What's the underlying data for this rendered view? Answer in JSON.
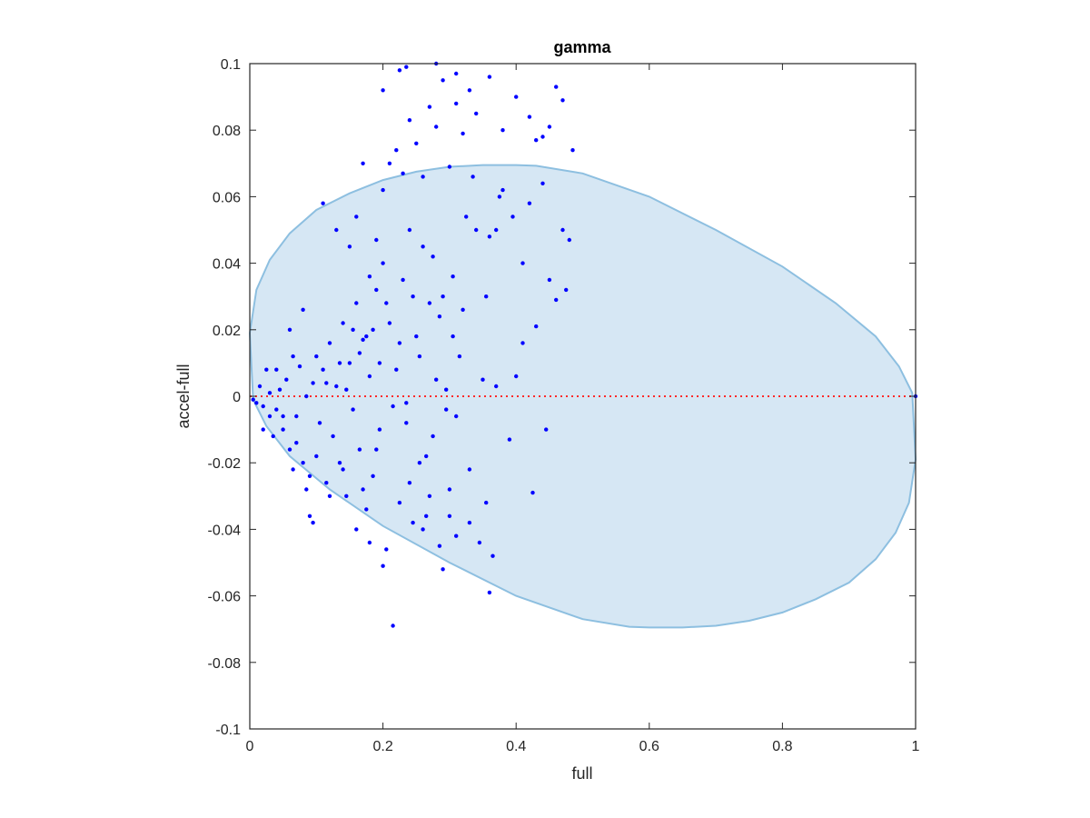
{
  "chart_data": {
    "type": "scatter",
    "title": "gamma",
    "xlabel": "full",
    "ylabel": "accel-full",
    "xlim": [
      0,
      1
    ],
    "ylim": [
      -0.1,
      0.1
    ],
    "xticks": [
      "0",
      "0.2",
      "0.4",
      "0.6",
      "0.8",
      "1"
    ],
    "xtick_values": [
      0,
      0.2,
      0.4,
      0.6,
      0.8,
      1
    ],
    "yticks": [
      "-0.1",
      "-0.08",
      "-0.06",
      "-0.04",
      "-0.02",
      "0",
      "0.02",
      "0.04",
      "0.06",
      "0.08",
      "0.1"
    ],
    "ytick_values": [
      -0.1,
      -0.08,
      -0.06,
      -0.04,
      -0.02,
      0,
      0.02,
      0.04,
      0.06,
      0.08,
      0.1
    ],
    "grid": false,
    "colors": {
      "points": "#0000ff",
      "ellipse_fill": "#d6e7f4",
      "ellipse_edge": "#8dbfe0",
      "zero_line": "#ff2a2a",
      "axes": "#262626"
    },
    "reference_line": {
      "y": 0,
      "style": "dotted"
    },
    "ellipse_polygon": [
      [
        0.0,
        0.019
      ],
      [
        0.01,
        0.032
      ],
      [
        0.03,
        0.041
      ],
      [
        0.06,
        0.049
      ],
      [
        0.1,
        0.056
      ],
      [
        0.15,
        0.061
      ],
      [
        0.2,
        0.065
      ],
      [
        0.25,
        0.0675
      ],
      [
        0.3,
        0.069
      ],
      [
        0.35,
        0.0695
      ],
      [
        0.4,
        0.0695
      ],
      [
        0.43,
        0.0693
      ],
      [
        0.5,
        0.067
      ],
      [
        0.6,
        0.06
      ],
      [
        0.7,
        0.05
      ],
      [
        0.8,
        0.039
      ],
      [
        0.88,
        0.028
      ],
      [
        0.94,
        0.018
      ],
      [
        0.975,
        0.009
      ],
      [
        0.995,
        0.001
      ],
      [
        1.0,
        -0.019
      ],
      [
        0.99,
        -0.032
      ],
      [
        0.97,
        -0.041
      ],
      [
        0.94,
        -0.049
      ],
      [
        0.9,
        -0.056
      ],
      [
        0.85,
        -0.061
      ],
      [
        0.8,
        -0.065
      ],
      [
        0.75,
        -0.0675
      ],
      [
        0.7,
        -0.069
      ],
      [
        0.65,
        -0.0695
      ],
      [
        0.6,
        -0.0695
      ],
      [
        0.57,
        -0.0693
      ],
      [
        0.5,
        -0.067
      ],
      [
        0.4,
        -0.06
      ],
      [
        0.3,
        -0.05
      ],
      [
        0.2,
        -0.039
      ],
      [
        0.12,
        -0.028
      ],
      [
        0.06,
        -0.018
      ],
      [
        0.025,
        -0.009
      ],
      [
        0.005,
        -0.001
      ]
    ],
    "series": [
      {
        "points": [
          [
            0.005,
            -0.001
          ],
          [
            0.01,
            -0.002
          ],
          [
            0.015,
            0.003
          ],
          [
            0.02,
            -0.003
          ],
          [
            0.025,
            0.008
          ],
          [
            0.03,
            0.001
          ],
          [
            0.02,
            -0.01
          ],
          [
            0.03,
            -0.006
          ],
          [
            0.035,
            -0.012
          ],
          [
            0.04,
            -0.004
          ],
          [
            0.045,
            0.002
          ],
          [
            0.05,
            -0.01
          ],
          [
            0.055,
            0.005
          ],
          [
            0.06,
            -0.016
          ],
          [
            0.065,
            0.012
          ],
          [
            0.07,
            -0.006
          ],
          [
            0.075,
            0.009
          ],
          [
            0.08,
            -0.02
          ],
          [
            0.085,
            0.0
          ],
          [
            0.09,
            -0.024
          ],
          [
            0.095,
            0.004
          ],
          [
            0.1,
            -0.018
          ],
          [
            0.105,
            -0.008
          ],
          [
            0.11,
            0.008
          ],
          [
            0.115,
            -0.026
          ],
          [
            0.12,
            0.016
          ],
          [
            0.125,
            -0.012
          ],
          [
            0.13,
            0.003
          ],
          [
            0.135,
            -0.02
          ],
          [
            0.14,
            0.022
          ],
          [
            0.145,
            -0.03
          ],
          [
            0.15,
            0.01
          ],
          [
            0.155,
            -0.004
          ],
          [
            0.16,
            0.028
          ],
          [
            0.165,
            -0.016
          ],
          [
            0.17,
            0.017
          ],
          [
            0.175,
            -0.034
          ],
          [
            0.18,
            0.006
          ],
          [
            0.185,
            -0.024
          ],
          [
            0.19,
            0.032
          ],
          [
            0.195,
            -0.01
          ],
          [
            0.2,
            0.04
          ],
          [
            0.205,
            -0.046
          ],
          [
            0.21,
            0.022
          ],
          [
            0.215,
            -0.069
          ],
          [
            0.22,
            0.008
          ],
          [
            0.225,
            -0.032
          ],
          [
            0.23,
            0.035
          ],
          [
            0.235,
            -0.002
          ],
          [
            0.24,
            0.05
          ],
          [
            0.245,
            -0.038
          ],
          [
            0.25,
            0.018
          ],
          [
            0.255,
            -0.02
          ],
          [
            0.26,
            0.045
          ],
          [
            0.265,
            -0.036
          ],
          [
            0.27,
            0.028
          ],
          [
            0.275,
            -0.012
          ],
          [
            0.28,
            0.005
          ],
          [
            0.285,
            -0.045
          ],
          [
            0.29,
            0.03
          ],
          [
            0.295,
            0.002
          ],
          [
            0.3,
            -0.028
          ],
          [
            0.305,
            0.018
          ],
          [
            0.31,
            -0.006
          ],
          [
            0.32,
            0.026
          ],
          [
            0.33,
            -0.038
          ],
          [
            0.34,
            0.05
          ],
          [
            0.35,
            0.005
          ],
          [
            0.355,
            -0.032
          ],
          [
            0.36,
            0.048
          ],
          [
            0.365,
            -0.048
          ],
          [
            0.37,
            0.003
          ],
          [
            0.38,
            0.062
          ],
          [
            0.39,
            -0.013
          ],
          [
            0.4,
            0.006
          ],
          [
            0.41,
            0.016
          ],
          [
            0.42,
            0.058
          ],
          [
            0.425,
            -0.029
          ],
          [
            0.43,
            0.021
          ],
          [
            0.44,
            0.064
          ],
          [
            0.445,
            -0.01
          ],
          [
            0.45,
            0.035
          ],
          [
            0.46,
            0.029
          ],
          [
            0.47,
            0.05
          ],
          [
            0.475,
            0.032
          ],
          [
            0.48,
            0.047
          ],
          [
            0.11,
            0.058
          ],
          [
            0.13,
            0.05
          ],
          [
            0.15,
            0.045
          ],
          [
            0.16,
            0.054
          ],
          [
            0.17,
            0.07
          ],
          [
            0.18,
            0.036
          ],
          [
            0.19,
            0.047
          ],
          [
            0.2,
            0.062
          ],
          [
            0.21,
            0.07
          ],
          [
            0.22,
            0.074
          ],
          [
            0.23,
            0.067
          ],
          [
            0.24,
            0.083
          ],
          [
            0.25,
            0.076
          ],
          [
            0.26,
            0.066
          ],
          [
            0.27,
            0.087
          ],
          [
            0.28,
            0.081
          ],
          [
            0.29,
            0.095
          ],
          [
            0.3,
            0.069
          ],
          [
            0.31,
            0.088
          ],
          [
            0.32,
            0.079
          ],
          [
            0.33,
            0.092
          ],
          [
            0.34,
            0.085
          ],
          [
            0.36,
            0.096
          ],
          [
            0.38,
            0.08
          ],
          [
            0.4,
            0.09
          ],
          [
            0.42,
            0.084
          ],
          [
            0.44,
            0.078
          ],
          [
            0.46,
            0.093
          ],
          [
            0.47,
            0.089
          ],
          [
            0.485,
            0.074
          ],
          [
            0.225,
            0.098
          ],
          [
            0.235,
            0.099
          ],
          [
            0.28,
            0.1
          ],
          [
            0.31,
            0.097
          ],
          [
            0.335,
            0.066
          ],
          [
            0.375,
            0.06
          ],
          [
            0.395,
            0.054
          ],
          [
            0.43,
            0.077
          ],
          [
            0.45,
            0.081
          ],
          [
            0.2,
            0.092
          ],
          [
            0.06,
            0.02
          ],
          [
            0.07,
            -0.014
          ],
          [
            0.08,
            0.026
          ],
          [
            0.09,
            -0.036
          ],
          [
            0.1,
            0.012
          ],
          [
            0.12,
            -0.03
          ],
          [
            0.14,
            -0.022
          ],
          [
            0.16,
            -0.04
          ],
          [
            0.17,
            -0.028
          ],
          [
            0.18,
            -0.044
          ],
          [
            0.19,
            -0.016
          ],
          [
            0.2,
            -0.051
          ],
          [
            0.24,
            -0.026
          ],
          [
            0.26,
            -0.04
          ],
          [
            0.27,
            -0.03
          ],
          [
            0.29,
            -0.052
          ],
          [
            0.3,
            -0.036
          ],
          [
            0.31,
            -0.042
          ],
          [
            0.33,
            -0.022
          ],
          [
            0.36,
            -0.059
          ],
          [
            0.05,
            -0.006
          ],
          [
            0.04,
            0.008
          ],
          [
            0.065,
            -0.022
          ],
          [
            0.085,
            -0.028
          ],
          [
            0.095,
            -0.038
          ],
          [
            0.115,
            0.004
          ],
          [
            0.135,
            0.01
          ],
          [
            0.145,
            0.002
          ],
          [
            0.155,
            0.02
          ],
          [
            0.165,
            0.013
          ],
          [
            0.175,
            0.018
          ],
          [
            0.185,
            0.02
          ],
          [
            0.195,
            0.01
          ],
          [
            0.205,
            0.028
          ],
          [
            0.215,
            -0.003
          ],
          [
            0.225,
            0.016
          ],
          [
            0.235,
            -0.008
          ],
          [
            0.245,
            0.03
          ],
          [
            0.255,
            0.012
          ],
          [
            0.265,
            -0.018
          ],
          [
            0.275,
            0.042
          ],
          [
            0.285,
            0.024
          ],
          [
            0.295,
            -0.004
          ],
          [
            0.305,
            0.036
          ],
          [
            0.315,
            0.012
          ],
          [
            0.325,
            0.054
          ],
          [
            0.345,
            -0.044
          ],
          [
            0.355,
            0.03
          ],
          [
            0.37,
            0.05
          ],
          [
            0.41,
            0.04
          ]
        ]
      }
    ]
  }
}
